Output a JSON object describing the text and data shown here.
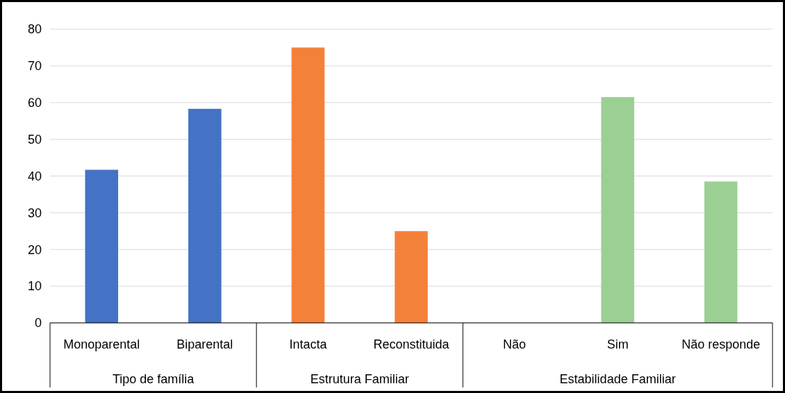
{
  "chart_data": {
    "type": "bar",
    "categories": [
      "Monoparental",
      "Biparental",
      "Intacta",
      "Reconstituida",
      "Não",
      "Sim",
      "Não responde"
    ],
    "series": [
      {
        "color": "#4472c4",
        "values": [
          41.7,
          58.3,
          null,
          null,
          null,
          null,
          null
        ]
      },
      {
        "color": "#f4813a",
        "values": [
          null,
          null,
          75,
          25,
          null,
          null,
          null
        ]
      },
      {
        "color": "#9bcf93",
        "values": [
          null,
          null,
          null,
          null,
          0,
          61.5,
          38.5
        ]
      }
    ],
    "annotations": [
      "Tipo de família",
      "Estrutura Familiar",
      "Estabilidade Familiar"
    ],
    "ylim": [
      0,
      80
    ],
    "yticks": [
      0,
      10,
      20,
      30,
      40,
      50,
      60,
      70,
      80
    ],
    "grid": "y"
  }
}
